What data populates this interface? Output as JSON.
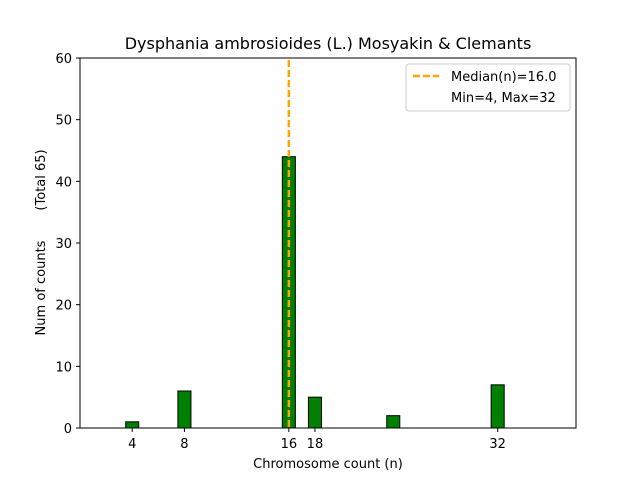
{
  "chart_data": {
    "type": "bar",
    "title": "Dysphania ambrosioides (L.) Mosyakin & Clemants",
    "xlabel": "Chromosome count (n)",
    "ylabel": "Num of counts",
    "ylabel_note": "(Total 65)",
    "xlim": [
      0,
      38
    ],
    "ylim": [
      0,
      60
    ],
    "xticks": [
      4,
      8,
      16,
      18,
      32
    ],
    "yticks": [
      0,
      10,
      20,
      30,
      40,
      50,
      60
    ],
    "bar_color": "#008000",
    "bar_edge_color": "#000000",
    "bars": [
      {
        "x": 4,
        "value": 1
      },
      {
        "x": 8,
        "value": 6
      },
      {
        "x": 16,
        "value": 44
      },
      {
        "x": 18,
        "value": 5
      },
      {
        "x": 24,
        "value": 2
      },
      {
        "x": 32,
        "value": 7
      }
    ],
    "median": 16.0,
    "median_color": "#FFA500",
    "legend": {
      "placement": "top-right",
      "entries": [
        "Median(n)=16.0",
        "Min=4, Max=32"
      ]
    },
    "grid": false
  }
}
